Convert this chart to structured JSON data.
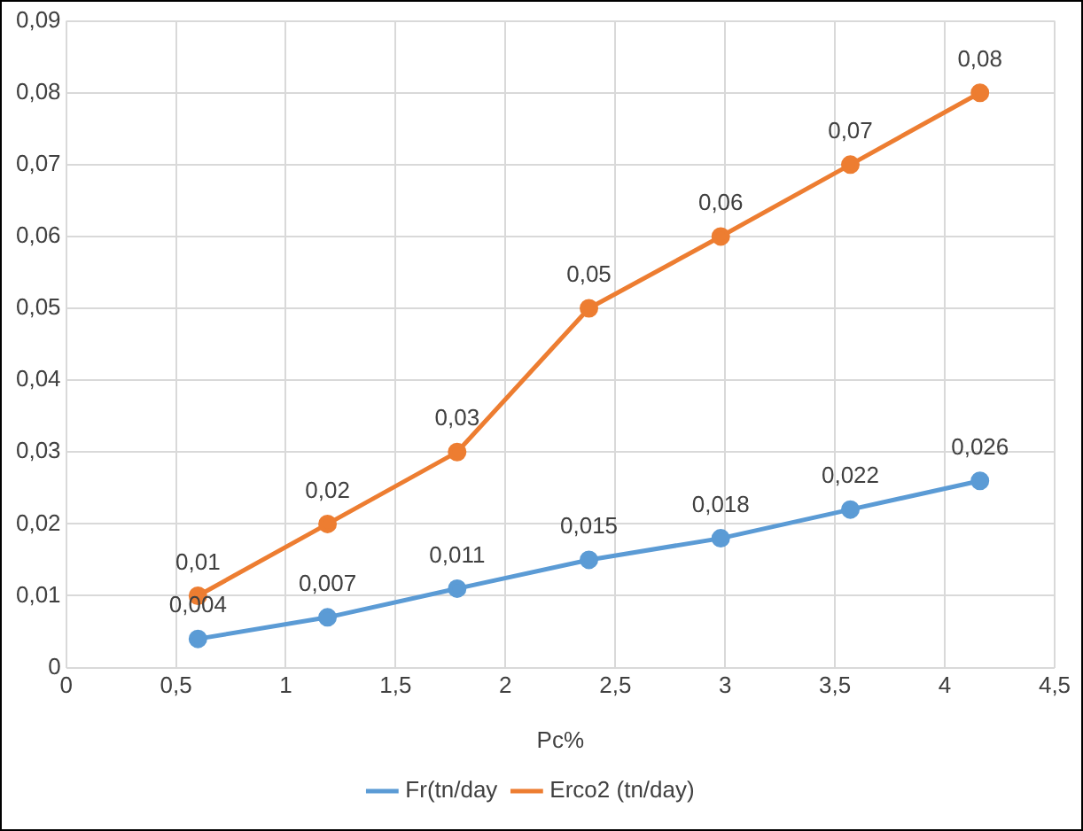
{
  "chart_data": {
    "type": "line",
    "xlabel": "Pc%",
    "x": [
      0.6,
      1.19,
      1.78,
      2.38,
      2.98,
      3.57,
      4.16
    ],
    "series": [
      {
        "name": "Fr(tn/day",
        "color": "#5b9bd5",
        "values": [
          0.004,
          0.007,
          0.011,
          0.015,
          0.018,
          0.022,
          0.026
        ],
        "value_labels": [
          "0,004",
          "0,007",
          "0,011",
          "0,015",
          "0,018",
          "0,022",
          "0,026"
        ]
      },
      {
        "name": "Erco2 (tn/day)",
        "color": "#ed7d31",
        "values": [
          0.01,
          0.02,
          0.03,
          0.05,
          0.06,
          0.07,
          0.08
        ],
        "value_labels": [
          "0,01",
          "0,02",
          "0,03",
          "0,05",
          "0,06",
          "0,07",
          "0,08"
        ]
      }
    ],
    "xlim": [
      0,
      4.5
    ],
    "xticks": [
      0,
      {
        "value": 0.5,
        "label": "0,5"
      },
      1,
      {
        "value": 1.5,
        "label": "1,5"
      },
      2,
      {
        "value": 2.5,
        "label": "2,5"
      },
      3,
      {
        "value": 3.5,
        "label": "3,5"
      },
      4,
      {
        "value": 4.5,
        "label": "4,5"
      }
    ],
    "ylim": [
      0,
      0.09
    ],
    "yticks": [
      0,
      {
        "value": 0.01,
        "label": "0,01"
      },
      {
        "value": 0.02,
        "label": "0,02"
      },
      {
        "value": 0.03,
        "label": "0,03"
      },
      {
        "value": 0.04,
        "label": "0,04"
      },
      {
        "value": 0.05,
        "label": "0,05"
      },
      {
        "value": 0.06,
        "label": "0,06"
      },
      {
        "value": 0.07,
        "label": "0,07"
      },
      {
        "value": 0.08,
        "label": "0,08"
      },
      {
        "value": 0.09,
        "label": "0,09"
      }
    ],
    "grid": true,
    "legend": "bottom",
    "marker": "circle",
    "line_style": "solid"
  }
}
